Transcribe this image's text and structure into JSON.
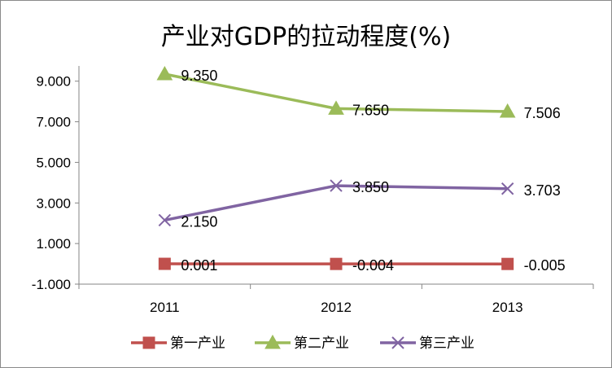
{
  "chart_data": {
    "type": "line",
    "title": "产业对GDP的拉动程度(%)",
    "categories": [
      "2011",
      "2012",
      "2013"
    ],
    "yticks": [
      "-1.000",
      "1.000",
      "3.000",
      "5.000",
      "7.000",
      "9.000"
    ],
    "ylim": [
      -1,
      9.75
    ],
    "grid": false,
    "legend_position": "bottom",
    "series": [
      {
        "name": "第一产业",
        "values": [
          0.001,
          -0.004,
          -0.005
        ],
        "labels": [
          "0.001",
          "-0.004",
          "-0.005"
        ],
        "color": "#c0504d",
        "marker": "square"
      },
      {
        "name": "第二产业",
        "values": [
          9.35,
          7.65,
          7.506
        ],
        "labels": [
          "9.350",
          "7.650",
          "7.506"
        ],
        "color": "#9bbb59",
        "marker": "triangle"
      },
      {
        "name": "第三产业",
        "values": [
          2.15,
          3.85,
          3.703
        ],
        "labels": [
          "2.150",
          "3.850",
          "3.703"
        ],
        "color": "#8064a2",
        "marker": "x"
      }
    ]
  }
}
